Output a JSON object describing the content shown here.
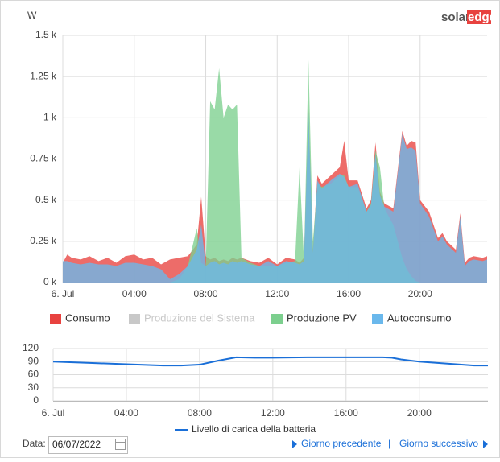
{
  "logo": [
    "solar",
    "edge"
  ],
  "chart_data": [
    {
      "type": "area",
      "ylabel": "W",
      "x": [
        0,
        0.25,
        0.5,
        1,
        1.5,
        2,
        2.5,
        3,
        3.5,
        4,
        4.5,
        5,
        5.5,
        6,
        6.5,
        7,
        7.5,
        7.75,
        8,
        8.25,
        8.5,
        8.75,
        9,
        9.25,
        9.5,
        9.75,
        10,
        10.5,
        11,
        11.5,
        12,
        12.5,
        13,
        13.25,
        13.5,
        13.75,
        14,
        14.25,
        14.5,
        15,
        15.5,
        15.75,
        16,
        16.5,
        17,
        17.25,
        17.5,
        17.75,
        18,
        18.5,
        19,
        19.25,
        19.5,
        19.75,
        20,
        20.5,
        21,
        21.25,
        21.5,
        22,
        22.25,
        22.5,
        22.75,
        23,
        23.5,
        23.75
      ],
      "xlim": [
        0,
        23.75
      ],
      "xticks": [
        {
          "value": 0,
          "label": "6. Jul"
        },
        {
          "value": 4,
          "label": "04:00"
        },
        {
          "value": 8,
          "label": "08:00"
        },
        {
          "value": 12,
          "label": "12:00"
        },
        {
          "value": 16,
          "label": "16:00"
        },
        {
          "value": 20,
          "label": "20:00"
        }
      ],
      "ylim": [
        0,
        1500
      ],
      "yticks": [
        {
          "value": 0,
          "label": "0 k"
        },
        {
          "value": 250,
          "label": "0.25 k"
        },
        {
          "value": 500,
          "label": "0.5 k"
        },
        {
          "value": 750,
          "label": "0.75 k"
        },
        {
          "value": 1000,
          "label": "1 k"
        },
        {
          "value": 1250,
          "label": "1.25 k"
        },
        {
          "value": 1500,
          "label": "1.5 k"
        }
      ],
      "grid": true,
      "series": [
        {
          "name": "Consumo",
          "color": "#e8423f",
          "visible": true,
          "values": [
            120,
            170,
            150,
            140,
            160,
            130,
            150,
            120,
            160,
            170,
            140,
            150,
            110,
            140,
            150,
            160,
            230,
            520,
            160,
            140,
            150,
            130,
            140,
            130,
            150,
            140,
            150,
            130,
            120,
            150,
            110,
            150,
            140,
            120,
            150,
            1050,
            200,
            650,
            600,
            650,
            700,
            860,
            620,
            620,
            450,
            500,
            850,
            550,
            480,
            450,
            920,
            830,
            860,
            850,
            500,
            430,
            270,
            300,
            250,
            200,
            420,
            120,
            150,
            160,
            150,
            160
          ]
        },
        {
          "name": "Produzione del Sistema",
          "color": "#c8c8c8",
          "visible": false
        },
        {
          "name": "Produzione PV",
          "color": "#7ccf8e",
          "visible": true,
          "values": [
            0,
            0,
            0,
            0,
            0,
            0,
            0,
            0,
            0,
            0,
            0,
            0,
            0,
            0,
            20,
            100,
            330,
            120,
            100,
            1100,
            1050,
            1300,
            1000,
            1080,
            1050,
            1080,
            150,
            120,
            100,
            100,
            100,
            120,
            130,
            700,
            130,
            1350,
            250,
            600,
            580,
            600,
            650,
            650,
            580,
            580,
            430,
            480,
            800,
            700,
            450,
            350,
            150,
            80,
            40,
            10,
            0,
            0,
            0,
            0,
            0,
            0,
            0,
            0,
            0,
            0,
            0,
            0
          ]
        },
        {
          "name": "Autoconsumo",
          "color": "#6ab8ec",
          "visible": true,
          "values": [
            130,
            130,
            120,
            110,
            120,
            110,
            110,
            100,
            120,
            120,
            110,
            100,
            80,
            20,
            50,
            100,
            200,
            350,
            100,
            120,
            130,
            110,
            120,
            110,
            130,
            120,
            130,
            110,
            100,
            130,
            100,
            130,
            120,
            110,
            130,
            1030,
            180,
            620,
            570,
            620,
            660,
            640,
            580,
            600,
            430,
            470,
            780,
            530,
            460,
            430,
            900,
            810,
            820,
            800,
            480,
            400,
            250,
            280,
            230,
            180,
            400,
            100,
            130,
            140,
            130,
            140
          ]
        }
      ]
    },
    {
      "type": "line",
      "x": [
        0,
        2,
        4,
        6,
        7,
        8,
        9,
        10,
        11,
        12,
        14,
        16,
        18,
        18.5,
        19,
        20,
        21,
        22,
        23,
        23.75
      ],
      "xlim": [
        0,
        23.75
      ],
      "xticks": [
        {
          "value": 0,
          "label": "6. Jul"
        },
        {
          "value": 4,
          "label": "04:00"
        },
        {
          "value": 8,
          "label": "08:00"
        },
        {
          "value": 12,
          "label": "12:00"
        },
        {
          "value": 16,
          "label": "16:00"
        },
        {
          "value": 20,
          "label": "20:00"
        }
      ],
      "ylim": [
        0,
        120
      ],
      "yticks": [
        0,
        30,
        60,
        90,
        120
      ],
      "grid": true,
      "series": [
        {
          "name": "Livello di carica della batteria",
          "color": "#1a6fd8",
          "visible": true,
          "values": [
            90,
            87,
            84,
            81,
            81,
            83,
            92,
            100,
            99,
            99,
            100,
            100,
            100,
            99,
            95,
            90,
            87,
            84,
            81,
            81
          ]
        }
      ]
    }
  ],
  "footer": {
    "date_label": "Data:",
    "date_value": "06/07/2022",
    "prev": "Giorno precedente",
    "separator": "|",
    "next": "Giorno successivo"
  }
}
